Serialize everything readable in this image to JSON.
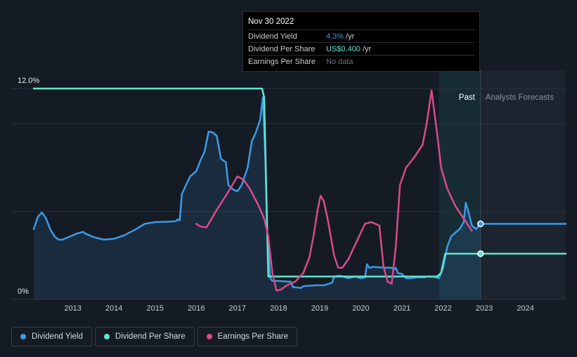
{
  "chart_data": {
    "type": "line",
    "y_axis": {
      "top_label": "12.0%",
      "bottom_label": "0%",
      "ylim": [
        0,
        12
      ]
    },
    "x_ticks": [
      "2013",
      "2014",
      "2015",
      "2016",
      "2017",
      "2018",
      "2019",
      "2020",
      "2021",
      "2022",
      "2023",
      "2024"
    ],
    "xlim": [
      2012.05,
      2024.98
    ],
    "regions": {
      "past_label": "Past",
      "forecast_label": "Analysts Forecasts",
      "past_start": 2021.9,
      "forecast_start": 2022.91
    },
    "series": [
      {
        "name": "Dividend Yield",
        "color": "#3a9be8",
        "area": true,
        "points": [
          [
            2012.05,
            4.0
          ],
          [
            2012.15,
            4.7
          ],
          [
            2012.25,
            4.95
          ],
          [
            2012.35,
            4.6
          ],
          [
            2012.45,
            4.0
          ],
          [
            2012.55,
            3.6
          ],
          [
            2012.65,
            3.4
          ],
          [
            2012.75,
            3.4
          ],
          [
            2012.85,
            3.5
          ],
          [
            2012.95,
            3.6
          ],
          [
            2013.1,
            3.75
          ],
          [
            2013.25,
            3.85
          ],
          [
            2013.3,
            3.75
          ],
          [
            2013.5,
            3.55
          ],
          [
            2013.75,
            3.4
          ],
          [
            2014.0,
            3.45
          ],
          [
            2014.25,
            3.65
          ],
          [
            2014.5,
            3.95
          ],
          [
            2014.75,
            4.3
          ],
          [
            2015.0,
            4.4
          ],
          [
            2015.3,
            4.42
          ],
          [
            2015.5,
            4.45
          ],
          [
            2015.55,
            4.55
          ],
          [
            2015.6,
            4.5
          ],
          [
            2015.65,
            6.0
          ],
          [
            2015.75,
            6.5
          ],
          [
            2015.85,
            7.0
          ],
          [
            2016.0,
            7.3
          ],
          [
            2016.1,
            7.9
          ],
          [
            2016.2,
            8.4
          ],
          [
            2016.3,
            9.55
          ],
          [
            2016.4,
            9.5
          ],
          [
            2016.5,
            9.3
          ],
          [
            2016.6,
            8.0
          ],
          [
            2016.72,
            7.8
          ],
          [
            2016.78,
            6.5
          ],
          [
            2016.9,
            6.25
          ],
          [
            2017.0,
            6.15
          ],
          [
            2017.1,
            6.5
          ],
          [
            2017.25,
            7.5
          ],
          [
            2017.35,
            9.0
          ],
          [
            2017.45,
            9.5
          ],
          [
            2017.55,
            10.2
          ],
          [
            2017.62,
            11.5
          ],
          [
            2017.68,
            8.0
          ],
          [
            2017.72,
            4.0
          ],
          [
            2017.8,
            1.2
          ],
          [
            2017.85,
            1.05
          ],
          [
            2018.0,
            1.05
          ],
          [
            2018.3,
            1.0
          ],
          [
            2018.35,
            0.7
          ],
          [
            2018.55,
            0.65
          ],
          [
            2018.6,
            0.75
          ],
          [
            2018.9,
            0.8
          ],
          [
            2019.1,
            0.8
          ],
          [
            2019.3,
            0.95
          ],
          [
            2019.35,
            1.3
          ],
          [
            2019.5,
            1.35
          ],
          [
            2019.7,
            1.2
          ],
          [
            2019.85,
            1.3
          ],
          [
            2020.0,
            1.2
          ],
          [
            2020.1,
            1.25
          ],
          [
            2020.15,
            2.0
          ],
          [
            2020.2,
            1.8
          ],
          [
            2020.3,
            1.85
          ],
          [
            2020.6,
            1.8
          ],
          [
            2020.75,
            1.8
          ],
          [
            2020.8,
            1.7
          ],
          [
            2020.85,
            1.8
          ],
          [
            2020.9,
            1.5
          ],
          [
            2021.0,
            1.45
          ],
          [
            2021.1,
            1.2
          ],
          [
            2021.2,
            1.2
          ],
          [
            2021.35,
            1.25
          ],
          [
            2021.55,
            1.25
          ],
          [
            2021.6,
            1.3
          ],
          [
            2021.75,
            1.3
          ],
          [
            2021.9,
            1.2
          ],
          [
            2022.0,
            1.8
          ],
          [
            2022.1,
            3.0
          ],
          [
            2022.2,
            3.6
          ],
          [
            2022.3,
            3.8
          ],
          [
            2022.4,
            4.0
          ],
          [
            2022.5,
            4.4
          ],
          [
            2022.55,
            5.5
          ],
          [
            2022.6,
            5.1
          ],
          [
            2022.7,
            4.2
          ],
          [
            2022.8,
            4.0
          ],
          [
            2022.91,
            4.3
          ]
        ]
      },
      {
        "name": "Dividend Yield forecast",
        "color": "#3a9be8",
        "points": [
          [
            2022.91,
            4.3
          ],
          [
            2024.98,
            4.3
          ]
        ]
      },
      {
        "name": "Dividend Per Share",
        "color": "#5ee6cf",
        "points": [
          [
            2012.05,
            12.0
          ],
          [
            2017.6,
            12.0
          ],
          [
            2017.65,
            11.5
          ],
          [
            2017.75,
            1.3
          ],
          [
            2017.85,
            1.3
          ],
          [
            2021.85,
            1.3
          ],
          [
            2021.95,
            1.5
          ],
          [
            2022.05,
            2.6
          ],
          [
            2022.91,
            2.6
          ]
        ]
      },
      {
        "name": "Dividend Per Share forecast",
        "color": "#5ee6cf",
        "points": [
          [
            2022.91,
            2.6
          ],
          [
            2024.98,
            2.6
          ]
        ]
      },
      {
        "name": "Earnings Per Share",
        "color": "#d94a8c",
        "points": [
          [
            2016.0,
            4.3
          ],
          [
            2016.1,
            4.15
          ],
          [
            2016.25,
            4.1
          ],
          [
            2016.5,
            5.1
          ],
          [
            2016.8,
            6.2
          ],
          [
            2017.0,
            7.0
          ],
          [
            2017.15,
            6.8
          ],
          [
            2017.3,
            6.3
          ],
          [
            2017.5,
            5.4
          ],
          [
            2017.65,
            4.6
          ],
          [
            2017.75,
            3.6
          ],
          [
            2017.85,
            1.5
          ],
          [
            2017.95,
            0.5
          ],
          [
            2018.05,
            0.55
          ],
          [
            2018.2,
            0.8
          ],
          [
            2018.4,
            1.0
          ],
          [
            2018.6,
            1.5
          ],
          [
            2018.75,
            2.4
          ],
          [
            2018.85,
            3.6
          ],
          [
            2018.95,
            5.1
          ],
          [
            2019.02,
            5.9
          ],
          [
            2019.1,
            5.6
          ],
          [
            2019.2,
            4.5
          ],
          [
            2019.35,
            2.5
          ],
          [
            2019.45,
            1.8
          ],
          [
            2019.55,
            1.8
          ],
          [
            2019.7,
            2.3
          ],
          [
            2019.9,
            3.3
          ],
          [
            2020.1,
            4.3
          ],
          [
            2020.25,
            4.4
          ],
          [
            2020.45,
            4.2
          ],
          [
            2020.55,
            1.9
          ],
          [
            2020.65,
            1.0
          ],
          [
            2020.75,
            0.9
          ],
          [
            2020.85,
            3.0
          ],
          [
            2020.95,
            6.5
          ],
          [
            2021.1,
            7.5
          ],
          [
            2021.3,
            8.1
          ],
          [
            2021.5,
            8.8
          ],
          [
            2021.6,
            10.0
          ],
          [
            2021.72,
            11.9
          ],
          [
            2021.85,
            9.5
          ],
          [
            2021.95,
            7.5
          ],
          [
            2022.1,
            6.3
          ],
          [
            2022.3,
            5.3
          ],
          [
            2022.5,
            4.6
          ],
          [
            2022.7,
            3.9
          ]
        ]
      }
    ],
    "highlight": {
      "x": 2022.91,
      "dividend_yield": 4.3,
      "dividend_per_share": 2.6
    }
  },
  "tooltip": {
    "date": "Nov 30 2022",
    "rows": [
      {
        "label": "Dividend Yield",
        "value": "4.3%",
        "unit": "/yr",
        "color": "#3a9be8"
      },
      {
        "label": "Dividend Per Share",
        "value": "US$0.400",
        "unit": "/yr",
        "color": "#5ee6cf"
      },
      {
        "label": "Earnings Per Share",
        "value": "No data",
        "unit": "",
        "color": "#6b7280"
      }
    ]
  },
  "legend": [
    {
      "label": "Dividend Yield",
      "color": "#3a9be8"
    },
    {
      "label": "Dividend Per Share",
      "color": "#5ee6cf"
    },
    {
      "label": "Earnings Per Share",
      "color": "#d94a8c"
    }
  ]
}
